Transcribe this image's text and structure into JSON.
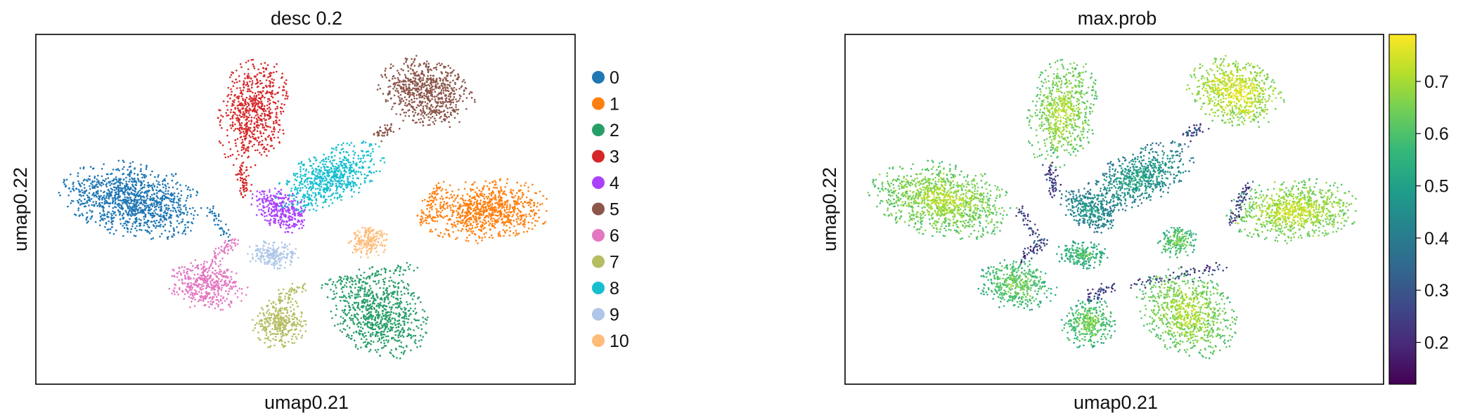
{
  "chart_data": [
    {
      "type": "scatter",
      "title": "desc 0.2",
      "xlabel": "umap0.21",
      "ylabel": "umap0.22",
      "grid": false,
      "legend_placement": "right, outside",
      "legend": [
        {
          "label": "0",
          "color": "#1f77b4"
        },
        {
          "label": "1",
          "color": "#ff7f0e"
        },
        {
          "label": "2",
          "color": "#279e68"
        },
        {
          "label": "3",
          "color": "#d62728"
        },
        {
          "label": "4",
          "color": "#aa40fc"
        },
        {
          "label": "5",
          "color": "#8c564b"
        },
        {
          "label": "6",
          "color": "#e377c2"
        },
        {
          "label": "7",
          "color": "#b5bd61"
        },
        {
          "label": "8",
          "color": "#17becf"
        },
        {
          "label": "9",
          "color": "#aec7e8"
        },
        {
          "label": "10",
          "color": "#ffbb78"
        }
      ]
    },
    {
      "type": "scatter",
      "title": "max.prob",
      "xlabel": "umap0.21",
      "ylabel": "umap0.22",
      "grid": false,
      "colormap": "viridis",
      "colorbar_range": [
        0.12,
        0.79
      ],
      "colorbar_ticks": [
        0.2,
        0.3,
        0.4,
        0.5,
        0.6,
        0.7
      ]
    }
  ]
}
